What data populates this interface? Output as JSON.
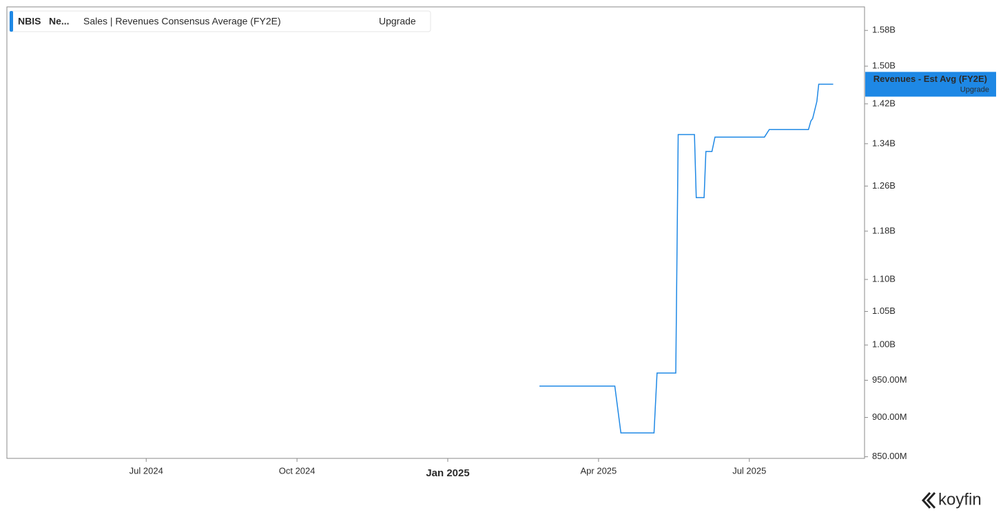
{
  "chart_data": {
    "type": "line",
    "ticker": "NBIS",
    "name": "Ne...",
    "upgrade_label": "Upgrade",
    "last_value_label": "Revenues - Est Avg (FY2E)",
    "brand": "koyfin",
    "yscale": "log",
    "grid": false,
    "x": [
      2025.152,
      2025.277,
      2025.287,
      2025.342,
      2025.347,
      2025.378,
      2025.382,
      2025.409,
      2025.412,
      2025.425,
      2025.428,
      2025.438,
      2025.443,
      2025.525,
      2025.533,
      2025.598,
      2025.602,
      2025.605,
      2025.612,
      2025.615,
      2025.639
    ],
    "series": [
      {
        "name": "Sales | Revenues Consensus Average (FY2E)",
        "color": "#1e88e5",
        "values": [
          942000000,
          942000000,
          880000000,
          880000000,
          960000000,
          960000000,
          1358000000,
          1358000000,
          1239000000,
          1239000000,
          1325000000,
          1325000000,
          1353000000,
          1353000000,
          1368000000,
          1368000000,
          1385000000,
          1390000000,
          1425000000,
          1461000000,
          1461000000
        ]
      }
    ],
    "xlim": [
      2024.269,
      2025.691
    ],
    "xticks": [
      {
        "value": 2024.5,
        "label": "Jul 2024"
      },
      {
        "value": 2024.75,
        "label": "Oct 2024"
      },
      {
        "value": 2025,
        "label": "Jan 2025"
      },
      {
        "value": 2025.25,
        "label": "Apr 2025"
      },
      {
        "value": 2025.5,
        "label": "Jul 2025"
      }
    ],
    "ylim": [
      848000000,
      1635000000
    ],
    "yticks": [
      {
        "value": 850000000,
        "label": "850.00M"
      },
      {
        "value": 900000000,
        "label": "900.00M"
      },
      {
        "value": 950000000,
        "label": "950.00M"
      },
      {
        "value": 1000000000,
        "label": "1.00B"
      },
      {
        "value": 1050000000,
        "label": "1.05B"
      },
      {
        "value": 1100000000,
        "label": "1.10B"
      },
      {
        "value": 1180000000,
        "label": "1.18B"
      },
      {
        "value": 1260000000,
        "label": "1.26B"
      },
      {
        "value": 1340000000,
        "label": "1.34B"
      },
      {
        "value": 1420000000,
        "label": "1.42B"
      },
      {
        "value": 1500000000,
        "label": "1.50B"
      },
      {
        "value": 1580000000,
        "label": "1.58B"
      }
    ]
  }
}
